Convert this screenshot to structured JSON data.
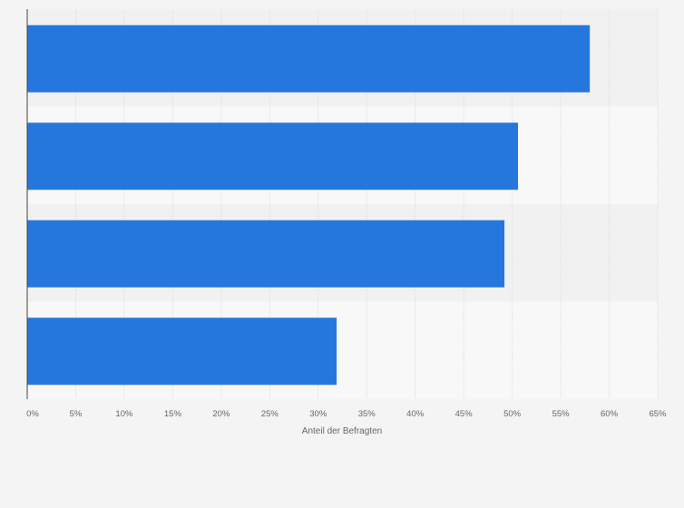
{
  "chart_data": {
    "type": "bar",
    "orientation": "horizontal",
    "values": [
      58,
      50.6,
      49.2,
      31.9
    ],
    "xlabel": "Anteil der Befragten",
    "ylabel": "",
    "xlim": [
      0,
      65
    ],
    "x_ticks": [
      "0%",
      "5%",
      "10%",
      "15%",
      "20%",
      "25%",
      "30%",
      "35%",
      "40%",
      "45%",
      "50%",
      "55%",
      "60%",
      "65%"
    ],
    "grid": true,
    "legend": "none",
    "colors": {
      "bar": "#2677dd",
      "band_dark": "#f1f1f1",
      "band_light": "#f8f8f8",
      "background": "#f4f4f4",
      "grid": "#dedede",
      "axis": "#444444",
      "text": "#666666"
    }
  }
}
